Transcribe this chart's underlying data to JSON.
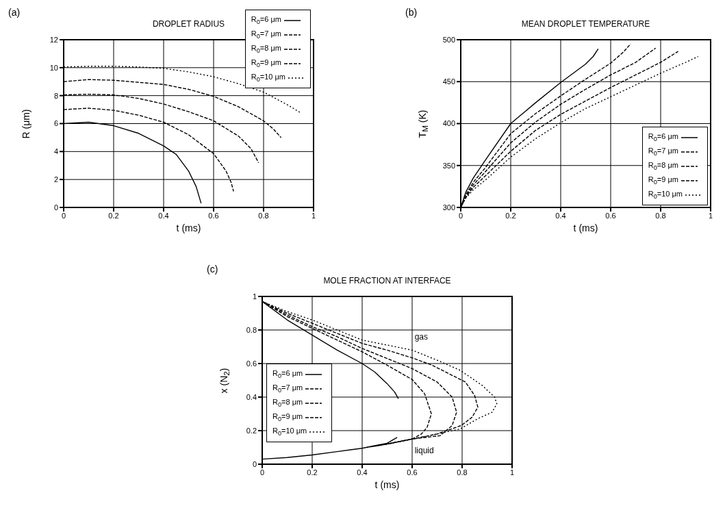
{
  "chart_data": [
    {
      "type": "line",
      "title": "DROPLET RADIUS",
      "xlabel": "t (ms)",
      "ylabel": "R (μm)",
      "annotations": [
        "(a)"
      ],
      "xlim": [
        0,
        1
      ],
      "xticks": [
        0,
        0.2,
        0.4,
        0.6,
        0.8,
        1
      ],
      "ylim": [
        0,
        12
      ],
      "yticks": [
        0,
        2,
        4,
        6,
        8,
        10,
        12
      ],
      "grid": true,
      "legend": "top right",
      "marker": "none",
      "series": [
        {
          "name": "R$_{0}$=6 μm",
          "color": "#000000",
          "line_style": "solid",
          "x": [
            0,
            0.1,
            0.2,
            0.3,
            0.4,
            0.45,
            0.5,
            0.53,
            0.55
          ],
          "values": [
            6.0,
            6.1,
            5.85,
            5.3,
            4.4,
            3.8,
            2.6,
            1.5,
            0.3
          ]
        },
        {
          "name": "R$_{0}$=7 μm",
          "color": "#000000",
          "line_style": "dashed",
          "x": [
            0,
            0.1,
            0.2,
            0.3,
            0.4,
            0.5,
            0.6,
            0.65,
            0.67,
            0.68
          ],
          "values": [
            7.0,
            7.1,
            6.95,
            6.6,
            6.1,
            5.2,
            3.85,
            2.6,
            1.8,
            1.15
          ]
        },
        {
          "name": "R$_{0}$=8 μm",
          "color": "#000000",
          "line_style": "dashed",
          "x": [
            0,
            0.1,
            0.2,
            0.3,
            0.4,
            0.5,
            0.6,
            0.7,
            0.75,
            0.78
          ],
          "values": [
            8.05,
            8.1,
            8.05,
            7.8,
            7.4,
            6.85,
            6.2,
            5.1,
            4.2,
            3.2
          ]
        },
        {
          "name": "R$_{0}$=9 μm",
          "color": "#000000",
          "line_style": "dashed",
          "x": [
            0,
            0.1,
            0.2,
            0.3,
            0.4,
            0.5,
            0.6,
            0.7,
            0.8,
            0.84,
            0.87
          ],
          "values": [
            9.0,
            9.15,
            9.1,
            8.95,
            8.8,
            8.45,
            7.95,
            7.2,
            6.2,
            5.6,
            5.0
          ]
        },
        {
          "name": "R$_{0}$=10 μm",
          "color": "#000000",
          "line_style": "dotted",
          "x": [
            0,
            0.1,
            0.2,
            0.3,
            0.4,
            0.5,
            0.6,
            0.7,
            0.8,
            0.9,
            0.95
          ],
          "values": [
            10.05,
            10.1,
            10.1,
            10.05,
            9.95,
            9.7,
            9.35,
            8.85,
            8.25,
            7.3,
            6.75
          ]
        }
      ]
    },
    {
      "type": "line",
      "title": "MEAN DROPLET TEMPERATURE",
      "xlabel": "t (ms)",
      "ylabel": "T$_{M}$ (K)",
      "annotations": [
        "(b)"
      ],
      "xlim": [
        0,
        1
      ],
      "xticks": [
        0,
        0.2,
        0.4,
        0.6,
        0.8,
        1
      ],
      "ylim": [
        300,
        500
      ],
      "yticks": [
        300,
        350,
        400,
        450,
        500
      ],
      "grid": true,
      "legend": "bottom right",
      "marker": "none",
      "series": [
        {
          "name": "R$_{0}$=6 μm",
          "color": "#000000",
          "line_style": "solid",
          "x": [
            0,
            0.02,
            0.05,
            0.1,
            0.2,
            0.3,
            0.4,
            0.5,
            0.53,
            0.55
          ],
          "values": [
            300,
            318,
            335,
            357,
            400,
            425,
            449,
            471,
            480,
            489
          ]
        },
        {
          "name": "R$_{0}$=7 μm",
          "color": "#000000",
          "line_style": "dashed",
          "x": [
            0,
            0.02,
            0.05,
            0.1,
            0.2,
            0.3,
            0.4,
            0.5,
            0.6,
            0.65,
            0.68
          ],
          "values": [
            300,
            315,
            330,
            348,
            388,
            412,
            433,
            453,
            472,
            485,
            495
          ]
        },
        {
          "name": "R$_{0}$=8 μm",
          "color": "#000000",
          "line_style": "dashed",
          "x": [
            0,
            0.02,
            0.05,
            0.1,
            0.2,
            0.3,
            0.4,
            0.5,
            0.6,
            0.7,
            0.78
          ],
          "values": [
            300,
            313,
            327,
            343,
            377,
            402,
            423,
            441,
            458,
            473,
            490
          ]
        },
        {
          "name": "R$_{0}$=9 μm",
          "color": "#000000",
          "line_style": "dashed",
          "x": [
            0,
            0.02,
            0.05,
            0.1,
            0.2,
            0.3,
            0.4,
            0.5,
            0.6,
            0.7,
            0.8,
            0.87
          ],
          "values": [
            300,
            312,
            324,
            338,
            367,
            392,
            411,
            427,
            443,
            458,
            473,
            486
          ]
        },
        {
          "name": "R$_{0}$=10 μm",
          "color": "#000000",
          "line_style": "dotted",
          "x": [
            0,
            0.02,
            0.05,
            0.1,
            0.2,
            0.3,
            0.4,
            0.5,
            0.6,
            0.7,
            0.8,
            0.9,
            0.95
          ],
          "values": [
            300,
            311,
            321,
            333,
            360,
            382,
            401,
            418,
            432,
            446,
            460,
            473,
            480
          ]
        }
      ]
    },
    {
      "type": "line",
      "title": "MOLE FRACTION AT INTERFACE",
      "xlabel": "t (ms)",
      "ylabel": "x (N$_{2}$)",
      "annotations": [
        "(c)",
        "gas",
        "liquid"
      ],
      "xlim": [
        0,
        1
      ],
      "xticks": [
        0,
        0.2,
        0.4,
        0.6,
        0.8,
        1
      ],
      "ylim": [
        0,
        1
      ],
      "yticks": [
        0,
        0.2,
        0.4,
        0.6,
        0.8,
        1
      ],
      "grid": true,
      "legend": "left",
      "marker": "none",
      "series": [
        {
          "name": "R$_{0}$=6 μm",
          "color": "#000000",
          "line_style": "solid",
          "x": [
            0,
            0.1,
            0.2,
            0.3,
            0.4,
            0.45,
            0.5,
            0.53,
            0.545
          ],
          "values": [
            0.97,
            0.86,
            0.77,
            0.68,
            0.6,
            0.55,
            0.48,
            0.43,
            0.39
          ]
        },
        {
          "color": "#000000",
          "line_style": "solid",
          "x": [
            0,
            0.1,
            0.2,
            0.3,
            0.4,
            0.45,
            0.5,
            0.54
          ],
          "values": [
            0.03,
            0.04,
            0.055,
            0.075,
            0.095,
            0.11,
            0.125,
            0.16
          ]
        },
        {
          "name": "R$_{0}$=7 μm",
          "color": "#000000",
          "line_style": "dashed",
          "x": [
            0,
            0.1,
            0.2,
            0.3,
            0.4,
            0.5,
            0.6,
            0.65,
            0.677,
            0.66,
            0.637,
            0.6,
            0.5,
            0.42
          ],
          "values": [
            0.97,
            0.88,
            0.81,
            0.74,
            0.67,
            0.59,
            0.505,
            0.42,
            0.3,
            0.22,
            0.18,
            0.15,
            0.12,
            0.1
          ]
        },
        {
          "name": "R$_{0}$=8 μm",
          "color": "#000000",
          "line_style": "dashed",
          "x": [
            0,
            0.1,
            0.2,
            0.3,
            0.4,
            0.5,
            0.6,
            0.7,
            0.76,
            0.778,
            0.76,
            0.712,
            0.6,
            0.5,
            0.44
          ],
          "values": [
            0.97,
            0.89,
            0.82,
            0.76,
            0.69,
            0.63,
            0.57,
            0.49,
            0.4,
            0.31,
            0.23,
            0.17,
            0.15,
            0.12,
            0.105
          ]
        },
        {
          "name": "R$_{0}$=9 μm",
          "color": "#000000",
          "line_style": "dashed",
          "x": [
            0,
            0.1,
            0.2,
            0.3,
            0.4,
            0.5,
            0.6,
            0.68,
            0.813,
            0.85,
            0.863,
            0.84,
            0.796,
            0.7,
            0.6,
            0.5,
            0.46
          ],
          "values": [
            0.97,
            0.9,
            0.84,
            0.78,
            0.72,
            0.68,
            0.634,
            0.59,
            0.49,
            0.41,
            0.34,
            0.28,
            0.23,
            0.18,
            0.15,
            0.12,
            0.11
          ]
        },
        {
          "name": "R$_{0}$=10 μm",
          "color": "#000000",
          "line_style": "dotted",
          "x": [
            0,
            0.1,
            0.2,
            0.3,
            0.4,
            0.5,
            0.6,
            0.7,
            0.792,
            0.88,
            0.93,
            0.939,
            0.92,
            0.861,
            0.792,
            0.7,
            0.6,
            0.48
          ],
          "values": [
            0.97,
            0.91,
            0.86,
            0.8,
            0.74,
            0.71,
            0.68,
            0.62,
            0.56,
            0.47,
            0.4,
            0.36,
            0.31,
            0.27,
            0.21,
            0.18,
            0.15,
            0.115
          ]
        }
      ]
    }
  ]
}
